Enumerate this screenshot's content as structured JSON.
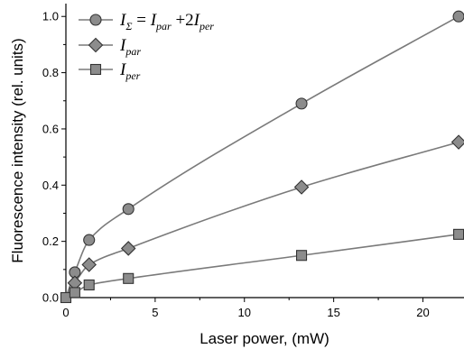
{
  "chart_data": {
    "type": "line",
    "xlabel": "Laser power, (mW)",
    "ylabel": "Fluorescence intensity (rel. units)",
    "xlim": [
      0,
      22.3
    ],
    "ylim": [
      0,
      1.02
    ],
    "xticks": [
      0,
      5,
      10,
      15,
      20
    ],
    "yticks": [
      0.0,
      0.2,
      0.4,
      0.6,
      0.8,
      1.0
    ],
    "xtick_labels": [
      "0",
      "5",
      "10",
      "15",
      "20"
    ],
    "ytick_labels": [
      "0.0",
      "0.2",
      "0.4",
      "0.6",
      "0.8",
      "1.0"
    ],
    "legend_position": "top-left",
    "grid": false,
    "series": [
      {
        "name": "I_Σ = I_par + 2I_per",
        "legend_parts": [
          "I",
          "Σ",
          " = ",
          "I",
          "par",
          " +2",
          "I",
          "per"
        ],
        "marker": "circle",
        "color": "#8c8c8c",
        "x": [
          0.5,
          1.3,
          3.5,
          13.2,
          22.0
        ],
        "y": [
          0.09,
          0.205,
          0.315,
          0.69,
          1.0
        ]
      },
      {
        "name": "I_par",
        "legend_parts": [
          "I",
          "par"
        ],
        "marker": "diamond",
        "color": "#8c8c8c",
        "x": [
          0.5,
          1.3,
          3.5,
          13.2,
          22.0
        ],
        "y": [
          0.052,
          0.117,
          0.175,
          0.393,
          0.553
        ]
      },
      {
        "name": "I_per",
        "legend_parts": [
          "I",
          "per"
        ],
        "marker": "square",
        "color": "#8c8c8c",
        "x": [
          0.0,
          0.5,
          1.3,
          3.5,
          13.2,
          22.0
        ],
        "y": [
          0.0,
          0.018,
          0.045,
          0.068,
          0.15,
          0.225
        ]
      }
    ]
  }
}
